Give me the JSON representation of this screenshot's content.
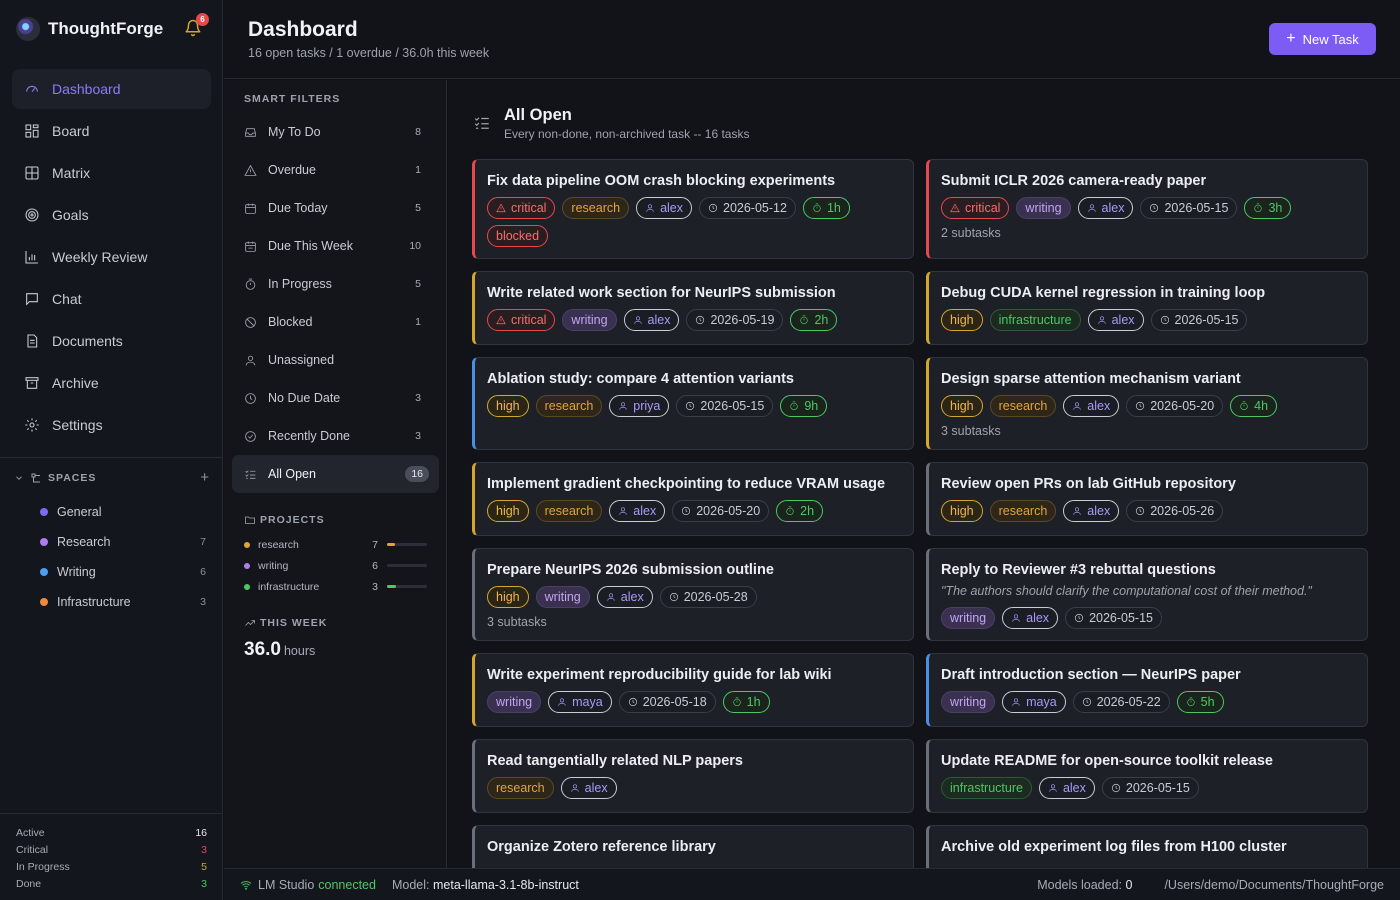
{
  "app": {
    "name": "ThoughtForge",
    "notifications": "6"
  },
  "nav": [
    {
      "label": "Dashboard",
      "icon": "gauge-icon",
      "active": true
    },
    {
      "label": "Board",
      "icon": "board-icon"
    },
    {
      "label": "Matrix",
      "icon": "grid-icon"
    },
    {
      "label": "Goals",
      "icon": "target-icon"
    },
    {
      "label": "Weekly Review",
      "icon": "chart-icon"
    },
    {
      "label": "Chat",
      "icon": "chat-icon"
    },
    {
      "label": "Documents",
      "icon": "document-icon"
    },
    {
      "label": "Archive",
      "icon": "archive-icon"
    },
    {
      "label": "Settings",
      "icon": "gear-icon"
    }
  ],
  "spaces": {
    "label": "SPACES",
    "items": [
      {
        "label": "General",
        "count": "",
        "color": "#7c6cf5"
      },
      {
        "label": "Research",
        "count": "7",
        "color": "#b07cf0"
      },
      {
        "label": "Writing",
        "count": "6",
        "color": "#4a9ff0"
      },
      {
        "label": "Infrastructure",
        "count": "3",
        "color": "#f0883e"
      }
    ]
  },
  "side_stats": [
    {
      "label": "Active",
      "value": "16",
      "color": "#e6e8ec"
    },
    {
      "label": "Critical",
      "value": "3",
      "color": "#e5484d"
    },
    {
      "label": "In Progress",
      "value": "5",
      "color": "#d4a72c"
    },
    {
      "label": "Done",
      "value": "3",
      "color": "#4cc864"
    }
  ],
  "header": {
    "title": "Dashboard",
    "subtitle": "16 open tasks / 1 overdue / 36.0h this week",
    "new_task": "New Task"
  },
  "filters": {
    "heading": "SMART FILTERS",
    "items": [
      {
        "label": "My To Do",
        "count": "8",
        "icon": "inbox-icon"
      },
      {
        "label": "Overdue",
        "count": "1",
        "icon": "warning-icon"
      },
      {
        "label": "Due Today",
        "count": "5",
        "icon": "calendar-icon"
      },
      {
        "label": "Due This Week",
        "count": "10",
        "icon": "calendar-week-icon"
      },
      {
        "label": "In Progress",
        "count": "5",
        "icon": "timer-icon"
      },
      {
        "label": "Blocked",
        "count": "1",
        "icon": "ban-icon"
      },
      {
        "label": "Unassigned",
        "count": "",
        "icon": "user-icon"
      },
      {
        "label": "No Due Date",
        "count": "3",
        "icon": "clock-icon"
      },
      {
        "label": "Recently Done",
        "count": "3",
        "icon": "check-circle-icon"
      },
      {
        "label": "All Open",
        "count": "16",
        "icon": "list-check-icon",
        "active": true
      }
    ]
  },
  "projects": {
    "heading": "PROJECTS",
    "items": [
      {
        "label": "research",
        "count": "7",
        "color": "#e3a43a",
        "progress": 0.2
      },
      {
        "label": "writing",
        "count": "6",
        "color": "#b07cf0",
        "progress": 0
      },
      {
        "label": "infrastructure",
        "count": "3",
        "color": "#4cc864",
        "progress": 0.22
      }
    ]
  },
  "week": {
    "heading": "THIS WEEK",
    "value": "36.0",
    "unit": "hours"
  },
  "list": {
    "title": "All Open",
    "subtitle": "Every non-done, non-archived task -- 16 tasks"
  },
  "tasks": [
    {
      "title": "Fix data pipeline OOM crash blocking experiments",
      "accent": "crit",
      "priority": "critical",
      "project": "research",
      "assignee": "alex",
      "due": "2026-05-12",
      "time": "1h",
      "blocked": "blocked"
    },
    {
      "title": "Submit ICLR 2026 camera-ready paper",
      "accent": "crit",
      "priority": "critical",
      "project": "writing",
      "assignee": "alex",
      "due": "2026-05-15",
      "time": "3h",
      "subtasks": "2 subtasks"
    },
    {
      "title": "Write related work section for NeurIPS submission",
      "accent": "high",
      "priority": "critical",
      "project": "writing",
      "assignee": "alex",
      "due": "2026-05-19",
      "time": "2h"
    },
    {
      "title": "Debug CUDA kernel regression in training loop",
      "accent": "high",
      "priority": "high",
      "project": "infrastructure",
      "assignee": "alex",
      "due": "2026-05-15"
    },
    {
      "title": "Ablation study: compare 4 attention variants",
      "accent": "blue",
      "priority": "high",
      "project": "research",
      "assignee": "priya",
      "due": "2026-05-15",
      "time": "9h"
    },
    {
      "title": "Design sparse attention mechanism variant",
      "accent": "high",
      "priority": "high",
      "project": "research",
      "assignee": "alex",
      "due": "2026-05-20",
      "time": "4h",
      "subtasks": "3 subtasks"
    },
    {
      "title": "Implement gradient checkpointing to reduce VRAM usage",
      "accent": "high",
      "priority": "high",
      "project": "research",
      "assignee": "alex",
      "due": "2026-05-20",
      "time": "2h"
    },
    {
      "title": "Review open PRs on lab GitHub repository",
      "accent": "gray",
      "priority": "high",
      "project": "research",
      "assignee": "alex",
      "due": "2026-05-26"
    },
    {
      "title": "Prepare NeurIPS 2026 submission outline",
      "accent": "gray",
      "priority": "high",
      "project": "writing",
      "assignee": "alex",
      "due": "2026-05-28",
      "subtasks": "3 subtasks"
    },
    {
      "title": "Reply to Reviewer #3 rebuttal questions",
      "accent": "gray",
      "quote": "\"The authors should clarify the computational cost of their method.\"",
      "project": "writing",
      "assignee": "alex",
      "due": "2026-05-15"
    },
    {
      "title": "Write experiment reproducibility guide for lab wiki",
      "accent": "high",
      "project": "writing",
      "assignee": "maya",
      "due": "2026-05-18",
      "time": "1h"
    },
    {
      "title": "Draft introduction section — NeurIPS paper",
      "accent": "blue",
      "project": "writing",
      "assignee": "maya",
      "due": "2026-05-22",
      "time": "5h"
    },
    {
      "title": "Read tangentially related NLP papers",
      "accent": "gray",
      "project": "research",
      "assignee": "alex"
    },
    {
      "title": "Update README for open-source toolkit release",
      "accent": "gray",
      "project": "infrastructure",
      "assignee": "alex",
      "due": "2026-05-15"
    },
    {
      "title": "Organize Zotero reference library",
      "accent": "gray"
    },
    {
      "title": "Archive old experiment log files from H100 cluster",
      "accent": "gray"
    }
  ],
  "status": {
    "server": "LM Studio",
    "state": "connected",
    "model_label": "Model:",
    "model": "meta-llama-3.1-8b-instruct",
    "loaded_label": "Models loaded:",
    "loaded": "0",
    "path": "/Users/demo/Documents/ThoughtForge"
  }
}
